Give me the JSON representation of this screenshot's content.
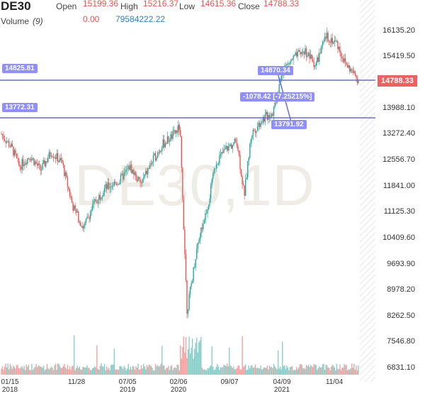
{
  "header": {
    "symbol": "DE30",
    "open_label": "Open",
    "open_value": "15199.36",
    "high_label": "High",
    "high_value": "15216.37",
    "low_label": "Low",
    "low_value": "14615.36",
    "close_label": "Close",
    "close_value": "14788.33",
    "volume_label": "Volume",
    "volume_param": "(9)",
    "volume_value1": "0.00",
    "volume_value2": "79584222.22"
  },
  "watermark": "DE30,1D",
  "annotations": {
    "level_high": "14825.81",
    "level_low": "13772.31",
    "measure_start": "14870.34",
    "measure_diff": "-1078.42 [-7.25215%]",
    "measure_end": "13791.92",
    "last_price": "14788.33"
  },
  "colors": {
    "up": "#26a69a",
    "down": "#ef5350",
    "line": "#6b6bd6",
    "pill": "#8f8fff",
    "price_tag": "#f06060"
  },
  "y_axis_labels": [
    "16135.20",
    "15419.50",
    "13988.10",
    "13272.40",
    "12556.70",
    "11841.00",
    "11125.30",
    "10409.60",
    "9693.90",
    "8978.20",
    "8262.50",
    "7546.80",
    "6831.10"
  ],
  "x_axis_labels": [
    [
      "01/15",
      "2018"
    ],
    [
      "11/28",
      ""
    ],
    [
      "07/05",
      "2019"
    ],
    [
      "02/06",
      "2020"
    ],
    [
      "09/07",
      ""
    ],
    [
      "04/09",
      "2021"
    ],
    [
      "11/04",
      ""
    ]
  ],
  "chart_data": {
    "type": "candlestick",
    "series": [
      {
        "name": "DE30",
        "values": [
          [
            0,
            13300
          ],
          [
            0.03,
            12900
          ],
          [
            0.05,
            12400
          ],
          [
            0.08,
            12700
          ],
          [
            0.11,
            12300
          ],
          [
            0.14,
            12800
          ],
          [
            0.17,
            12500
          ],
          [
            0.2,
            11300
          ],
          [
            0.23,
            10700
          ],
          [
            0.26,
            11400
          ],
          [
            0.29,
            11800
          ],
          [
            0.33,
            12000
          ],
          [
            0.36,
            12400
          ],
          [
            0.39,
            11900
          ],
          [
            0.42,
            12500
          ],
          [
            0.45,
            13000
          ],
          [
            0.48,
            13250
          ],
          [
            0.5,
            13500
          ],
          [
            0.52,
            8400
          ],
          [
            0.55,
            10300
          ],
          [
            0.58,
            11400
          ],
          [
            0.6,
            12500
          ],
          [
            0.63,
            12900
          ],
          [
            0.66,
            13100
          ],
          [
            0.68,
            11600
          ],
          [
            0.7,
            13300
          ],
          [
            0.73,
            13700
          ],
          [
            0.76,
            13900
          ],
          [
            0.79,
            15100
          ],
          [
            0.82,
            15400
          ],
          [
            0.85,
            15600
          ],
          [
            0.88,
            15200
          ],
          [
            0.91,
            16000
          ],
          [
            0.94,
            15800
          ],
          [
            0.96,
            15300
          ],
          [
            1,
            14788
          ]
        ]
      }
    ],
    "horizontal_levels": [
      14825.81,
      13772.31
    ],
    "ylim": [
      6831.1,
      16135.2
    ]
  }
}
